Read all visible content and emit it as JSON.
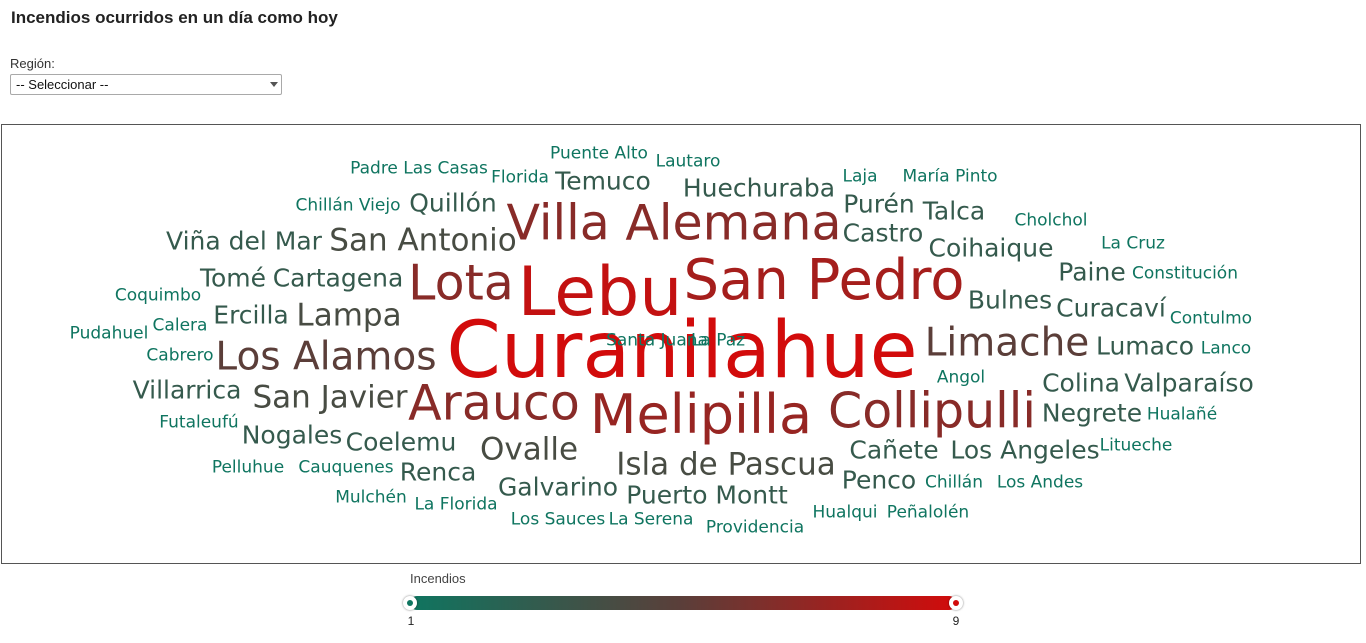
{
  "header": {
    "title": "Incendios ocurridos en un día como hoy"
  },
  "filter": {
    "label": "Región:",
    "selected": "-- Seleccionar --"
  },
  "legend": {
    "title": "Incendios",
    "min_label": "1",
    "max_label": "9"
  },
  "colors": {
    "low": "#0f7560",
    "mid": "#5b3e39",
    "high": "#d20b0b"
  },
  "chart_data": {
    "type": "wordcloud",
    "value_range": [
      1,
      9
    ],
    "words": [
      {
        "text": "Curanilahue",
        "value": 9
      },
      {
        "text": "Lebu",
        "value": 8.5
      },
      {
        "text": "San Pedro",
        "value": 7.5
      },
      {
        "text": "Melipilla",
        "value": 7
      },
      {
        "text": "Villa Alemana",
        "value": 6.5
      },
      {
        "text": "Lota",
        "value": 6.5
      },
      {
        "text": "Arauco",
        "value": 6.5
      },
      {
        "text": "Collipulli",
        "value": 6.5
      },
      {
        "text": "Limache",
        "value": 5
      },
      {
        "text": "Los Alamos",
        "value": 5
      },
      {
        "text": "San Antonio",
        "value": 4
      },
      {
        "text": "Isla de Pascua",
        "value": 4
      },
      {
        "text": "Ovalle",
        "value": 4
      },
      {
        "text": "Lampa",
        "value": 4
      },
      {
        "text": "San Javier",
        "value": 4
      },
      {
        "text": "Huechuraba",
        "value": 3
      },
      {
        "text": "Viña del Mar",
        "value": 3
      },
      {
        "text": "Cartagena",
        "value": 3
      },
      {
        "text": "Tomé",
        "value": 3
      },
      {
        "text": "Quillón",
        "value": 3
      },
      {
        "text": "Temuco",
        "value": 3
      },
      {
        "text": "Purén",
        "value": 3
      },
      {
        "text": "Talca",
        "value": 3
      },
      {
        "text": "Castro",
        "value": 3
      },
      {
        "text": "Coihaique",
        "value": 3
      },
      {
        "text": "Paine",
        "value": 3
      },
      {
        "text": "Bulnes",
        "value": 3
      },
      {
        "text": "Curacaví",
        "value": 3
      },
      {
        "text": "Lumaco",
        "value": 3
      },
      {
        "text": "Colina",
        "value": 3
      },
      {
        "text": "Valparaíso",
        "value": 3
      },
      {
        "text": "Negrete",
        "value": 3
      },
      {
        "text": "Ercilla",
        "value": 3
      },
      {
        "text": "Villarrica",
        "value": 3
      },
      {
        "text": "Nogales",
        "value": 3
      },
      {
        "text": "Coelemu",
        "value": 3
      },
      {
        "text": "Renca",
        "value": 3
      },
      {
        "text": "Galvarino",
        "value": 3
      },
      {
        "text": "Puerto Montt",
        "value": 3
      },
      {
        "text": "Cañete",
        "value": 3
      },
      {
        "text": "Los Angeles",
        "value": 3
      },
      {
        "text": "Penco",
        "value": 3
      },
      {
        "text": "Padre Las Casas",
        "value": 1
      },
      {
        "text": "Puente Alto",
        "value": 1
      },
      {
        "text": "Florida",
        "value": 1
      },
      {
        "text": "Lautaro",
        "value": 1
      },
      {
        "text": "Laja",
        "value": 1
      },
      {
        "text": "María Pinto",
        "value": 1
      },
      {
        "text": "Chillán Viejo",
        "value": 1
      },
      {
        "text": "Cholchol",
        "value": 1
      },
      {
        "text": "La Cruz",
        "value": 1
      },
      {
        "text": "Constitución",
        "value": 1
      },
      {
        "text": "Coquimbo",
        "value": 1
      },
      {
        "text": "Contulmo",
        "value": 1
      },
      {
        "text": "Pudahuel",
        "value": 1
      },
      {
        "text": "Calera",
        "value": 1
      },
      {
        "text": "Lanco",
        "value": 1
      },
      {
        "text": "Cabrero",
        "value": 1
      },
      {
        "text": "Angol",
        "value": 1
      },
      {
        "text": "Hualañé",
        "value": 1
      },
      {
        "text": "Futaleufú",
        "value": 1
      },
      {
        "text": "Litueche",
        "value": 1
      },
      {
        "text": "Pelluhue",
        "value": 1
      },
      {
        "text": "Cauquenes",
        "value": 1
      },
      {
        "text": "Chillán",
        "value": 1
      },
      {
        "text": "Los Andes",
        "value": 1
      },
      {
        "text": "Mulchén",
        "value": 1
      },
      {
        "text": "La Florida",
        "value": 1
      },
      {
        "text": "Hualqui",
        "value": 1
      },
      {
        "text": "Peñalolén",
        "value": 1
      },
      {
        "text": "Los Sauces",
        "value": 1
      },
      {
        "text": "La Serena",
        "value": 1
      },
      {
        "text": "Providencia",
        "value": 1
      },
      {
        "text": "Santa Juana",
        "value": 1
      },
      {
        "text": "La Paz",
        "value": 1
      }
    ]
  }
}
